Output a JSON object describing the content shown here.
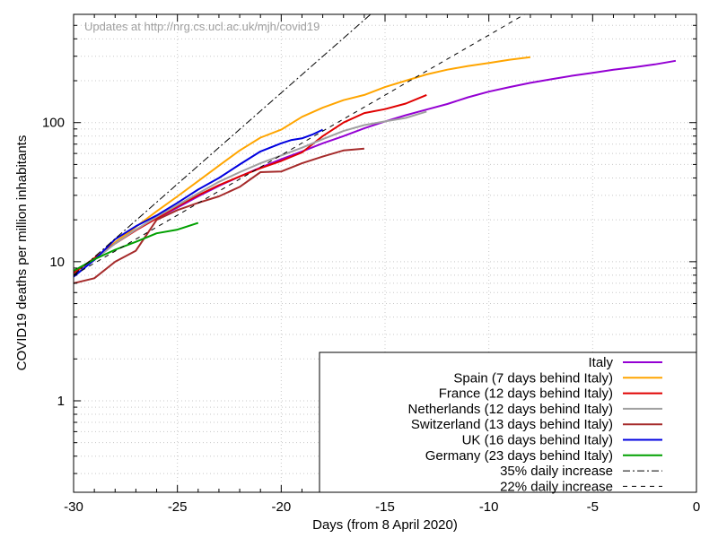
{
  "chart_data": {
    "type": "line",
    "annotation": "Updates at http://nrg.cs.ucl.ac.uk/mjh/covid19",
    "xlabel": "Days (from 8 April 2020)",
    "ylabel": "COVID19 deaths per million inhabitants",
    "xlim": [
      -30,
      0
    ],
    "ylim": [
      0.22,
      600
    ],
    "yscale": "log",
    "grid": true,
    "legend_position": "bottom-right",
    "x_ticks": [
      -30,
      -25,
      -20,
      -15,
      -10,
      -5,
      0
    ],
    "x_tick_labels": [
      "-30",
      "-25",
      "-20",
      "-15",
      "-10",
      "-5",
      "0"
    ],
    "y_ticks": [
      1,
      10,
      100
    ],
    "y_tick_labels": [
      "1",
      "10",
      "100"
    ],
    "series": [
      {
        "name": "Italy",
        "color": "#9400d3",
        "dash": "solid",
        "x": [
          -30,
          -29,
          -28,
          -27,
          -26,
          -25,
          -24,
          -23,
          -22,
          -21,
          -20,
          -19,
          -18,
          -17,
          -16,
          -15,
          -14,
          -13,
          -12,
          -11,
          -10,
          -9,
          -8,
          -7,
          -6,
          -5,
          -4,
          -3,
          -2,
          -1
        ],
        "y": [
          8.1,
          10.5,
          13.7,
          17.0,
          20.5,
          24.5,
          29.5,
          35.0,
          41.0,
          47.5,
          54.5,
          62.0,
          71.0,
          80.0,
          91.0,
          102,
          113,
          124,
          136,
          152,
          167,
          180,
          193,
          205,
          217,
          228,
          240,
          250,
          262,
          278
        ]
      },
      {
        "name": "Spain (7 days behind Italy)",
        "color": "#ffa500",
        "dash": "solid",
        "x": [
          -30,
          -29,
          -28,
          -27,
          -26,
          -25,
          -24,
          -23,
          -22,
          -21,
          -20,
          -19,
          -18,
          -17,
          -16,
          -15,
          -14,
          -13,
          -12,
          -11,
          -10,
          -9,
          -8
        ],
        "y": [
          8.0,
          10.6,
          13.8,
          17.8,
          23.0,
          29.5,
          38.0,
          49.0,
          63.0,
          78.0,
          89.0,
          110,
          128,
          145,
          158,
          180,
          200,
          222,
          240,
          255,
          268,
          283,
          295
        ]
      },
      {
        "name": "France (12 days behind Italy)",
        "color": "#e00000",
        "dash": "solid",
        "x": [
          -30,
          -29,
          -28,
          -27,
          -26,
          -25,
          -24,
          -23,
          -22,
          -21,
          -20,
          -19,
          -18,
          -17,
          -16,
          -15,
          -14,
          -13
        ],
        "y": [
          8.3,
          10.6,
          13.5,
          16.8,
          20.5,
          25.0,
          30.0,
          35.5,
          41.0,
          47.0,
          53.0,
          61.0,
          80.0,
          100,
          117,
          125,
          137,
          158
        ]
      },
      {
        "name": "Netherlands (12 days behind Italy)",
        "color": "#a0a0a0",
        "dash": "solid",
        "x": [
          -30,
          -29,
          -28,
          -27,
          -26,
          -25,
          -24,
          -23,
          -22,
          -21,
          -20,
          -19,
          -18,
          -17,
          -16,
          -15,
          -14,
          -13
        ],
        "y": [
          8.0,
          10.3,
          13.5,
          17.0,
          21.0,
          25.5,
          31.0,
          37.5,
          44.0,
          51.0,
          58.0,
          66.0,
          76.0,
          87.0,
          96.0,
          102,
          108,
          120
        ]
      },
      {
        "name": "Switzerland (13 days behind Italy)",
        "color": "#a52a2a",
        "dash": "solid",
        "x": [
          -30,
          -29,
          -28,
          -27,
          -26,
          -25,
          -24,
          -23,
          -22,
          -21,
          -20,
          -19,
          -18,
          -17,
          -16
        ],
        "y": [
          7.0,
          7.6,
          10.0,
          12.0,
          20.0,
          23.5,
          26.5,
          29.5,
          34.5,
          44.0,
          44.5,
          51.0,
          57.0,
          63.0,
          65.0
        ]
      },
      {
        "name": "UK (16 days behind Italy)",
        "color": "#0000e0",
        "dash": "solid",
        "x": [
          -30,
          -29,
          -28,
          -27,
          -26,
          -25,
          -24,
          -23,
          -22,
          -21,
          -20,
          -19.5,
          -19,
          -18.5,
          -18
        ],
        "y": [
          7.8,
          10.3,
          14.5,
          18.0,
          21.5,
          26.5,
          33.0,
          40.0,
          50.0,
          62.0,
          71.0,
          75.0,
          77.0,
          82.0,
          89.0
        ]
      },
      {
        "name": "Germany (23 days behind Italy)",
        "color": "#00a000",
        "dash": "solid",
        "x": [
          -30,
          -29,
          -28,
          -27,
          -26,
          -25,
          -24
        ],
        "y": [
          8.6,
          10.4,
          12.2,
          13.9,
          16.0,
          17.0,
          19.0
        ]
      },
      {
        "name": "35% daily increase",
        "color": "#000000",
        "dash": "dashdot",
        "x": [
          -30,
          -14
        ],
        "y": [
          8.0,
          1000
        ]
      },
      {
        "name": "22% daily increase",
        "color": "#000000",
        "dash": "dashed",
        "x": [
          -30,
          0
        ],
        "y": [
          8.0,
          3105
        ]
      }
    ]
  }
}
